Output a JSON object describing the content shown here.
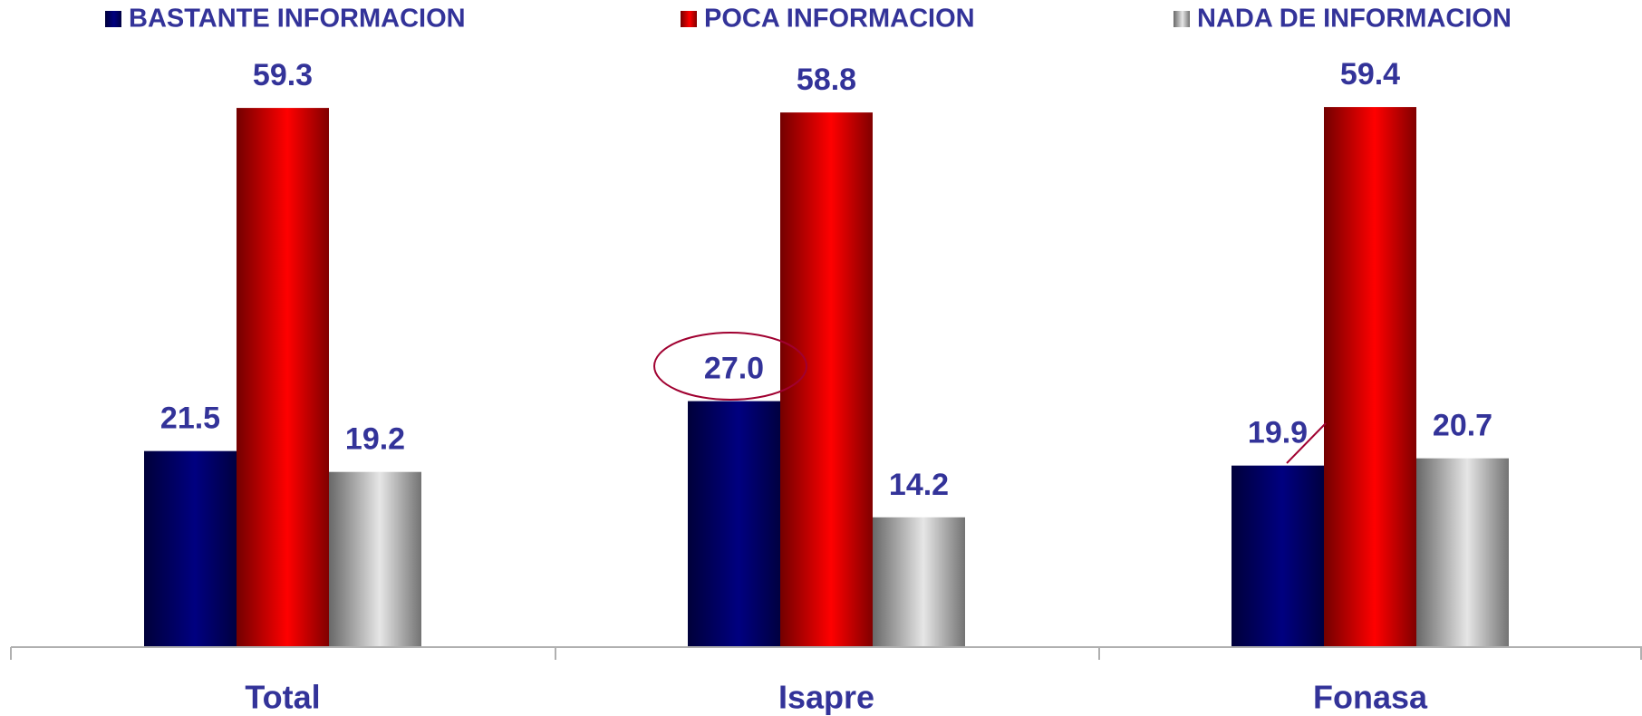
{
  "chart_data": {
    "type": "bar",
    "categories": [
      "Total",
      "Isapre",
      "Fonasa"
    ],
    "series": [
      {
        "name": "BASTANTE INFORMACION",
        "color": "#000080",
        "values": [
          21.5,
          27.0,
          19.9
        ],
        "value_labels": [
          "21.5",
          "27.0",
          "19.9"
        ]
      },
      {
        "name": "POCA INFORMACION",
        "color": "#ff0000",
        "values": [
          59.3,
          58.8,
          59.4
        ],
        "value_labels": [
          "59.3",
          "58.8",
          "59.4"
        ]
      },
      {
        "name": "NADA DE INFORMACION",
        "color": "#e6e6e6",
        "values": [
          19.2,
          14.2,
          20.7
        ],
        "value_labels": [
          "19.2",
          "14.2",
          "20.7"
        ]
      }
    ],
    "ylim": [
      0,
      65
    ],
    "legend": "top"
  }
}
